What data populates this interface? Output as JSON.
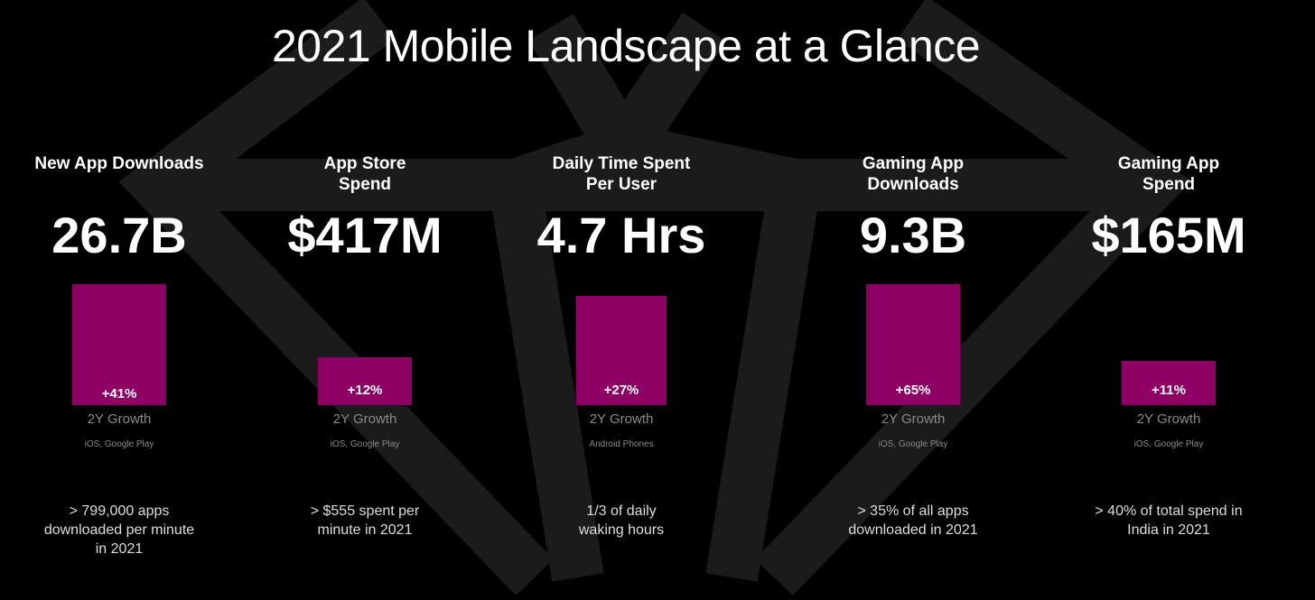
{
  "title": "2021 Mobile Landscape at a Glance",
  "colors": {
    "bar": "#8f0064",
    "background": "#000000",
    "diamond": "#1b1b1b"
  },
  "metrics": [
    {
      "label": "New App Downloads",
      "value": "26.7B",
      "growth": "+41%",
      "growth_label": "2Y Growth",
      "source": "iOS, Google Play",
      "note": "> 799,000 apps downloaded per minute in 2021"
    },
    {
      "label": "App Store Spend",
      "value": "$417M",
      "growth": "+12%",
      "growth_label": "2Y Growth",
      "source": "iOS, Google Play",
      "note": "> $555 spent per minute in 2021"
    },
    {
      "label": "Daily Time Spent Per User",
      "value": "4.7 Hrs",
      "growth": "+27%",
      "growth_label": "2Y Growth",
      "source": "Android Phones",
      "note": "1/3 of daily waking hours"
    },
    {
      "label": "Gaming App Downloads",
      "value": "9.3B",
      "growth": "+65%",
      "growth_label": "2Y Growth",
      "source": "iOS, Google Play",
      "note": "> 35% of all apps downloaded in 2021"
    },
    {
      "label": "Gaming App Spend",
      "value": "$165M",
      "growth": "+11%",
      "growth_label": "2Y Growth",
      "source": "iOS, Google Play",
      "note": "> 40% of total spend in India in 2021"
    }
  ]
}
